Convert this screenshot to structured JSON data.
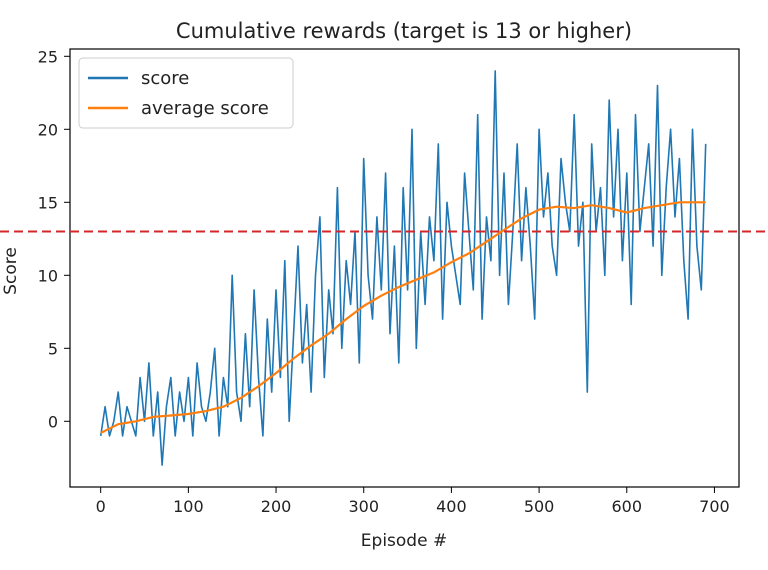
{
  "chart_data": {
    "type": "line",
    "title": "Cumulative rewards (target is 13 or higher)",
    "xlabel": "Episode #",
    "ylabel": "Score",
    "xlim": [
      -35,
      728
    ],
    "ylim": [
      -4.5,
      25.5
    ],
    "xticks": [
      0,
      100,
      200,
      300,
      400,
      500,
      600,
      700
    ],
    "yticks": [
      0,
      5,
      10,
      15,
      20,
      25
    ],
    "grid": false,
    "legend": "top-left",
    "target": {
      "value": 13,
      "color": "#d62728",
      "style": "dashed"
    },
    "series": [
      {
        "name": "score",
        "color": "#1f77b4",
        "x": [
          0,
          5,
          10,
          15,
          20,
          25,
          30,
          35,
          40,
          45,
          50,
          55,
          60,
          65,
          70,
          75,
          80,
          85,
          90,
          95,
          100,
          105,
          110,
          115,
          120,
          125,
          130,
          135,
          140,
          145,
          150,
          155,
          160,
          165,
          170,
          175,
          180,
          185,
          190,
          195,
          200,
          205,
          210,
          215,
          220,
          225,
          230,
          235,
          240,
          245,
          250,
          255,
          260,
          265,
          270,
          275,
          280,
          285,
          290,
          295,
          300,
          305,
          310,
          315,
          320,
          325,
          330,
          335,
          340,
          345,
          350,
          355,
          360,
          365,
          370,
          375,
          380,
          385,
          390,
          395,
          400,
          405,
          410,
          415,
          420,
          425,
          430,
          435,
          440,
          445,
          450,
          455,
          460,
          465,
          470,
          475,
          480,
          485,
          490,
          495,
          500,
          505,
          510,
          515,
          520,
          525,
          530,
          535,
          540,
          545,
          550,
          555,
          560,
          565,
          570,
          575,
          580,
          585,
          590,
          595,
          600,
          605,
          610,
          615,
          620,
          625,
          630,
          635,
          640,
          645,
          650,
          655,
          660,
          665,
          670,
          675,
          680,
          685,
          690
        ],
        "values": [
          -1,
          1,
          -1,
          0,
          2,
          -1,
          1,
          0,
          -1,
          3,
          0,
          4,
          -1,
          2,
          -3,
          1,
          3,
          -1,
          2,
          0,
          3,
          -1,
          4,
          1,
          0,
          2,
          5,
          -1,
          3,
          1,
          10,
          2,
          0,
          6,
          1,
          9,
          3,
          -1,
          7,
          2,
          9,
          3,
          11,
          0,
          6,
          12,
          4,
          8,
          2,
          10,
          14,
          3,
          9,
          6,
          16,
          5,
          11,
          8,
          13,
          4,
          18,
          10,
          7,
          14,
          9,
          17,
          6,
          12,
          4,
          16,
          9,
          20,
          5,
          13,
          8,
          14,
          11,
          19,
          7,
          15,
          12,
          10,
          8,
          17,
          13,
          9,
          21,
          7,
          14,
          11,
          24,
          10,
          17,
          8,
          13,
          19,
          11,
          16,
          12,
          7,
          20,
          14,
          17,
          12,
          10,
          18,
          15,
          13,
          21,
          12,
          15,
          2,
          19,
          13,
          16,
          10,
          22,
          14,
          20,
          11,
          17,
          8,
          21,
          13,
          16,
          19,
          12,
          23,
          10,
          16,
          20,
          14,
          18,
          11,
          7,
          20,
          12,
          9,
          19
        ]
      },
      {
        "name": "average score",
        "color": "#ff7f0e",
        "x": [
          0,
          20,
          40,
          60,
          80,
          100,
          120,
          140,
          160,
          180,
          200,
          220,
          240,
          260,
          280,
          300,
          320,
          340,
          360,
          380,
          400,
          420,
          440,
          460,
          480,
          500,
          520,
          540,
          560,
          580,
          600,
          620,
          640,
          660,
          680,
          690
        ],
        "values": [
          -0.8,
          -0.2,
          0,
          0.3,
          0.4,
          0.5,
          0.7,
          1.0,
          1.6,
          2.4,
          3.3,
          4.3,
          5.2,
          6.0,
          7.0,
          7.9,
          8.6,
          9.2,
          9.7,
          10.2,
          10.9,
          11.5,
          12.3,
          13.1,
          13.9,
          14.5,
          14.7,
          14.6,
          14.8,
          14.6,
          14.3,
          14.6,
          14.8,
          15.0,
          15.0,
          15.0
        ]
      }
    ]
  }
}
